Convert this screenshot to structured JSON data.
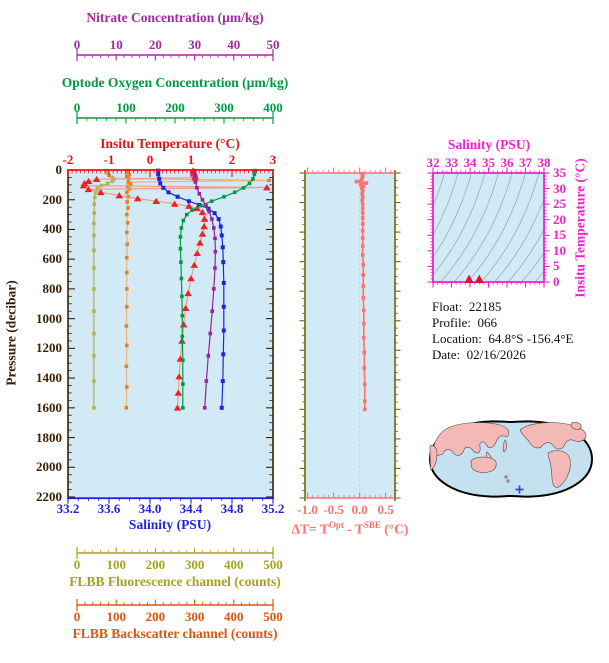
{
  "colors": {
    "plot_bg": "#d2eaf5",
    "pressure": "#3b1f04",
    "map_ocean": "#c5e0ee",
    "map_land": "#f3b9b7",
    "map_outline": "#000000",
    "map_marker": "#2b46e8",
    "info_text": "#111111"
  },
  "info": {
    "lines": [
      "Float:  22185",
      "Profile:  066",
      "Location:  64.8°S -156.4°E",
      "Date:  02/16/2026"
    ]
  },
  "chart_data": [
    {
      "id": "main-profile",
      "type": "line",
      "pressure_axis": {
        "label": "Pressure (decibar)",
        "color": "#3b1f04",
        "lim": [
          0,
          2200
        ],
        "ticks": [
          "0",
          "200",
          "400",
          "600",
          "800",
          "1000",
          "1200",
          "1400",
          "1600",
          "1800",
          "2000",
          "2200"
        ]
      },
      "axes": {
        "nitrate": {
          "label": "Nitrate Concentration (µm/kg)",
          "color": "#a22aa2",
          "lim": [
            0,
            50
          ],
          "ticks": [
            "0",
            "10",
            "20",
            "30",
            "40",
            "50"
          ]
        },
        "oxygen": {
          "label": "Optode Oxygen Concentration (µm/kg)",
          "color": "#009944",
          "lim": [
            0,
            400
          ],
          "ticks": [
            "0",
            "100",
            "200",
            "300",
            "400"
          ]
        },
        "temperature": {
          "label": "Insitu Temperature (°C)",
          "color": "#ee1111",
          "lim": [
            -2,
            3
          ],
          "ticks": [
            "-2",
            "-1",
            "0",
            "1",
            "2",
            "3"
          ]
        },
        "salinity": {
          "label": "Salinity (PSU)",
          "color": "#2222dd",
          "lim": [
            33.2,
            35.2
          ],
          "ticks": [
            "33.2",
            "33.6",
            "34.0",
            "34.4",
            "34.8",
            "35.2"
          ]
        },
        "fluorescence": {
          "label": "FLBB Fluorescence channel (counts)",
          "color": "#a6a31c",
          "lim": [
            0,
            500
          ],
          "ticks": [
            "0",
            "100",
            "200",
            "300",
            "400",
            "500"
          ]
        },
        "backscatter": {
          "label": "FLBB Backscatter channel (counts)",
          "color": "#dd5510",
          "lim": [
            0,
            500
          ],
          "ticks": [
            "0",
            "100",
            "200",
            "300",
            "400",
            "500"
          ]
        }
      },
      "series": [
        {
          "name": "fluorescence",
          "axis": "fluorescence",
          "color": "#b6b24e",
          "marker": "square",
          "marker_size": 3.6,
          "points": [
            [
              74,
              4
            ],
            [
              76,
              20
            ],
            [
              82,
              36
            ],
            [
              90,
              50
            ],
            [
              95,
              62
            ],
            [
              90,
              76
            ],
            [
              78,
              90
            ],
            [
              62,
              105
            ],
            [
              52,
              125
            ],
            [
              47,
              150
            ],
            [
              45,
              185
            ],
            [
              44,
              230
            ],
            [
              44,
              290
            ],
            [
              43,
              360
            ],
            [
              43,
              440
            ],
            [
              43,
              540
            ],
            [
              43,
              660
            ],
            [
              43,
              800
            ],
            [
              43,
              950
            ],
            [
              43,
              1100
            ],
            [
              43,
              1250
            ],
            [
              43,
              1420
            ],
            [
              43,
              1600
            ]
          ]
        },
        {
          "name": "backscatter",
          "axis": "backscatter",
          "color": "#e8821f",
          "line_color": "#edb277",
          "marker": "square",
          "marker_size": 3.6,
          "points": [
            [
              130,
              4
            ],
            [
              127,
              18
            ],
            [
              133,
              32
            ],
            [
              127,
              46
            ],
            [
              132,
              58
            ],
            [
              490,
              70
            ],
            [
              131,
              82
            ],
            [
              137,
              95
            ],
            [
              129,
              110
            ],
            [
              133,
              128
            ],
            [
              127,
              150
            ],
            [
              131,
              180
            ],
            [
              128,
              215
            ],
            [
              130,
              255
            ],
            [
              127,
              300
            ],
            [
              129,
              355
            ],
            [
              127,
              420
            ],
            [
              128,
              500
            ],
            [
              127,
              590
            ],
            [
              127,
              690
            ],
            [
              127,
              800
            ],
            [
              127,
              920
            ],
            [
              126,
              1050
            ],
            [
              127,
              1180
            ],
            [
              126,
              1320
            ],
            [
              127,
              1460
            ],
            [
              126,
              1600
            ]
          ]
        },
        {
          "name": "temperature",
          "axis": "temperature",
          "color": "#ee2222",
          "line_color": "#f29a8a",
          "marker": "triangle",
          "points": [
            [
              1.05,
              4
            ],
            [
              1.08,
              20
            ],
            [
              1.1,
              38
            ],
            [
              1.1,
              52
            ],
            [
              -1.3,
              62
            ],
            [
              -1.5,
              75
            ],
            [
              -1.6,
              90
            ],
            [
              -1.62,
              105
            ],
            [
              2.85,
              118
            ],
            [
              -1.5,
              130
            ],
            [
              -1.2,
              150
            ],
            [
              -0.75,
              172
            ],
            [
              -0.3,
              192
            ],
            [
              0.15,
              210
            ],
            [
              0.6,
              228
            ],
            [
              0.95,
              243
            ],
            [
              1.15,
              258
            ],
            [
              1.28,
              285
            ],
            [
              1.33,
              330
            ],
            [
              1.32,
              380
            ],
            [
              1.28,
              430
            ],
            [
              1.22,
              490
            ],
            [
              1.15,
              560
            ],
            [
              1.08,
              640
            ],
            [
              1.0,
              730
            ],
            [
              0.93,
              830
            ],
            [
              0.87,
              930
            ],
            [
              0.82,
              1040
            ],
            [
              0.78,
              1150
            ],
            [
              0.74,
              1270
            ],
            [
              0.71,
              1390
            ],
            [
              0.69,
              1500
            ],
            [
              0.67,
              1600
            ]
          ]
        },
        {
          "name": "salinity",
          "axis": "salinity",
          "color": "#2222dd",
          "marker": "square",
          "marker_size": 4,
          "points": [
            [
              34.08,
              4
            ],
            [
              34.08,
              30
            ],
            [
              34.09,
              60
            ],
            [
              34.1,
              90
            ],
            [
              34.13,
              120
            ],
            [
              34.18,
              150
            ],
            [
              34.27,
              180
            ],
            [
              34.38,
              210
            ],
            [
              34.48,
              235
            ],
            [
              34.57,
              260
            ],
            [
              34.63,
              290
            ],
            [
              34.67,
              330
            ],
            [
              34.69,
              380
            ],
            [
              34.7,
              440
            ],
            [
              34.71,
              520
            ],
            [
              34.715,
              620
            ],
            [
              34.72,
              760
            ],
            [
              34.72,
              920
            ],
            [
              34.72,
              1080
            ],
            [
              34.715,
              1240
            ],
            [
              34.71,
              1420
            ],
            [
              34.7,
              1600
            ]
          ]
        },
        {
          "name": "nitrate",
          "axis": "nitrate",
          "color": "#992299",
          "marker": "square",
          "marker_size": 3.6,
          "points": [
            [
              30,
              4
            ],
            [
              30,
              40
            ],
            [
              30.2,
              80
            ],
            [
              30.6,
              120
            ],
            [
              31.2,
              160
            ],
            [
              32,
              200
            ],
            [
              32.9,
              240
            ],
            [
              33.7,
              280
            ],
            [
              34.4,
              330
            ],
            [
              34.9,
              390
            ],
            [
              35.2,
              460
            ],
            [
              35.3,
              550
            ],
            [
              35.2,
              660
            ],
            [
              34.9,
              800
            ],
            [
              34.5,
              950
            ],
            [
              34,
              1100
            ],
            [
              33.5,
              1250
            ],
            [
              33,
              1420
            ],
            [
              32.6,
              1600
            ]
          ]
        },
        {
          "name": "oxygen",
          "axis": "oxygen",
          "color": "#009944",
          "marker": "square",
          "marker_size": 3.6,
          "points": [
            [
              363,
              4
            ],
            [
              362,
              30
            ],
            [
              359,
              60
            ],
            [
              352,
              90
            ],
            [
              340,
              120
            ],
            [
              322,
              150
            ],
            [
              300,
              180
            ],
            [
              275,
              210
            ],
            [
              252,
              240
            ],
            [
              235,
              270
            ],
            [
              224,
              300
            ],
            [
              217,
              340
            ],
            [
              213,
              390
            ],
            [
              211,
              450
            ],
            [
              211,
              530
            ],
            [
              212,
              620
            ],
            [
              213,
              730
            ],
            [
              214,
              850
            ],
            [
              215,
              980
            ],
            [
              215,
              1120
            ],
            [
              216,
              1280
            ],
            [
              216,
              1440
            ],
            [
              216,
              1600
            ]
          ]
        }
      ]
    },
    {
      "id": "delta-t",
      "type": "line",
      "xaxis": {
        "label_parts": {
          "t1": "ΔT= T",
          "sup1": "Opt",
          "t2": " - T",
          "sup2": "SBE",
          "t3": " (°C)"
        },
        "color": "#ff7070",
        "frame_side_color": "#6b6b00",
        "zero_line_color": "#e9b7c4",
        "lim": [
          -1.05,
          0.68
        ],
        "ticks": [
          "-1.0",
          "-0.5",
          "0.0",
          "0.5"
        ]
      },
      "series": [
        {
          "name": "delta-t",
          "color": "#ff7070",
          "marker": "square",
          "marker_size": 3.6,
          "points": [
            [
              0.05,
              4
            ],
            [
              0.06,
              18
            ],
            [
              0.05,
              32
            ],
            [
              0.04,
              46
            ],
            [
              -0.06,
              58
            ],
            [
              0.13,
              68
            ],
            [
              0.02,
              78
            ],
            [
              0.07,
              90
            ],
            [
              0.04,
              104
            ],
            [
              0.06,
              120
            ],
            [
              0.05,
              140
            ],
            [
              0.06,
              162
            ],
            [
              0.05,
              186
            ],
            [
              0.06,
              212
            ],
            [
              0.06,
              240
            ],
            [
              0.06,
              270
            ],
            [
              0.06,
              305
            ],
            [
              0.06,
              345
            ],
            [
              0.06,
              390
            ],
            [
              0.06,
              440
            ],
            [
              0.06,
              495
            ],
            [
              0.06,
              555
            ],
            [
              0.07,
              620
            ],
            [
              0.07,
              690
            ],
            [
              0.07,
              765
            ],
            [
              0.07,
              845
            ],
            [
              0.08,
              930
            ],
            [
              0.08,
              1020
            ],
            [
              0.08,
              1115
            ],
            [
              0.09,
              1215
            ],
            [
              0.09,
              1320
            ],
            [
              0.1,
              1430
            ],
            [
              0.1,
              1545
            ],
            [
              0.1,
              1600
            ]
          ]
        }
      ]
    },
    {
      "id": "ts-diagram",
      "type": "scatter",
      "frame_color": "#ee22cc",
      "contour_color": "#93aebc",
      "contour_count": 16,
      "marker_color": "#e01038",
      "xaxis": {
        "label": "Salinity (PSU)",
        "lim": [
          32,
          38
        ],
        "ticks": [
          "32",
          "33",
          "34",
          "35",
          "36",
          "37",
          "38"
        ]
      },
      "yaxis": {
        "label": "Insitu Temperature (°C)",
        "lim": [
          0,
          35
        ],
        "ticks": [
          "0",
          "5",
          "10",
          "15",
          "20",
          "25",
          "30",
          "35"
        ]
      },
      "points": [
        [
          33.95,
          1.05
        ],
        [
          34.5,
          1.15
        ]
      ]
    }
  ]
}
